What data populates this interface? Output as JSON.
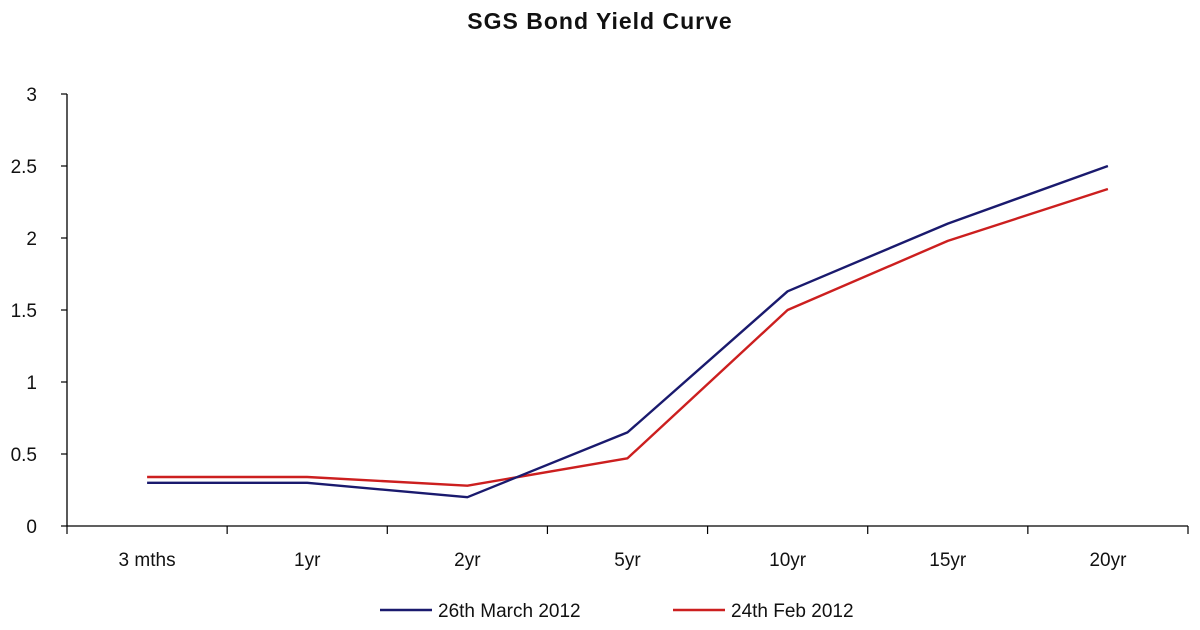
{
  "chart_data": {
    "type": "line",
    "title": "SGS Bond Yield Curve",
    "xlabel": "",
    "ylabel": "",
    "categories": [
      "3 mths",
      "1yr",
      "2yr",
      "5yr",
      "10yr",
      "15yr",
      "20yr"
    ],
    "yticks": [
      "0",
      "0.5",
      "1",
      "1.5",
      "2",
      "2.5",
      "3"
    ],
    "ylim": [
      0,
      3
    ],
    "grid": false,
    "legend_position": "bottom",
    "series": [
      {
        "name": "26th March 2012",
        "color": "#1a1a6e",
        "values": [
          0.3,
          0.3,
          0.2,
          0.65,
          1.63,
          2.1,
          2.5
        ]
      },
      {
        "name": "24th Feb 2012",
        "color": "#cc1f1f",
        "values": [
          0.34,
          0.34,
          0.28,
          0.47,
          1.5,
          1.98,
          2.34
        ]
      }
    ]
  }
}
